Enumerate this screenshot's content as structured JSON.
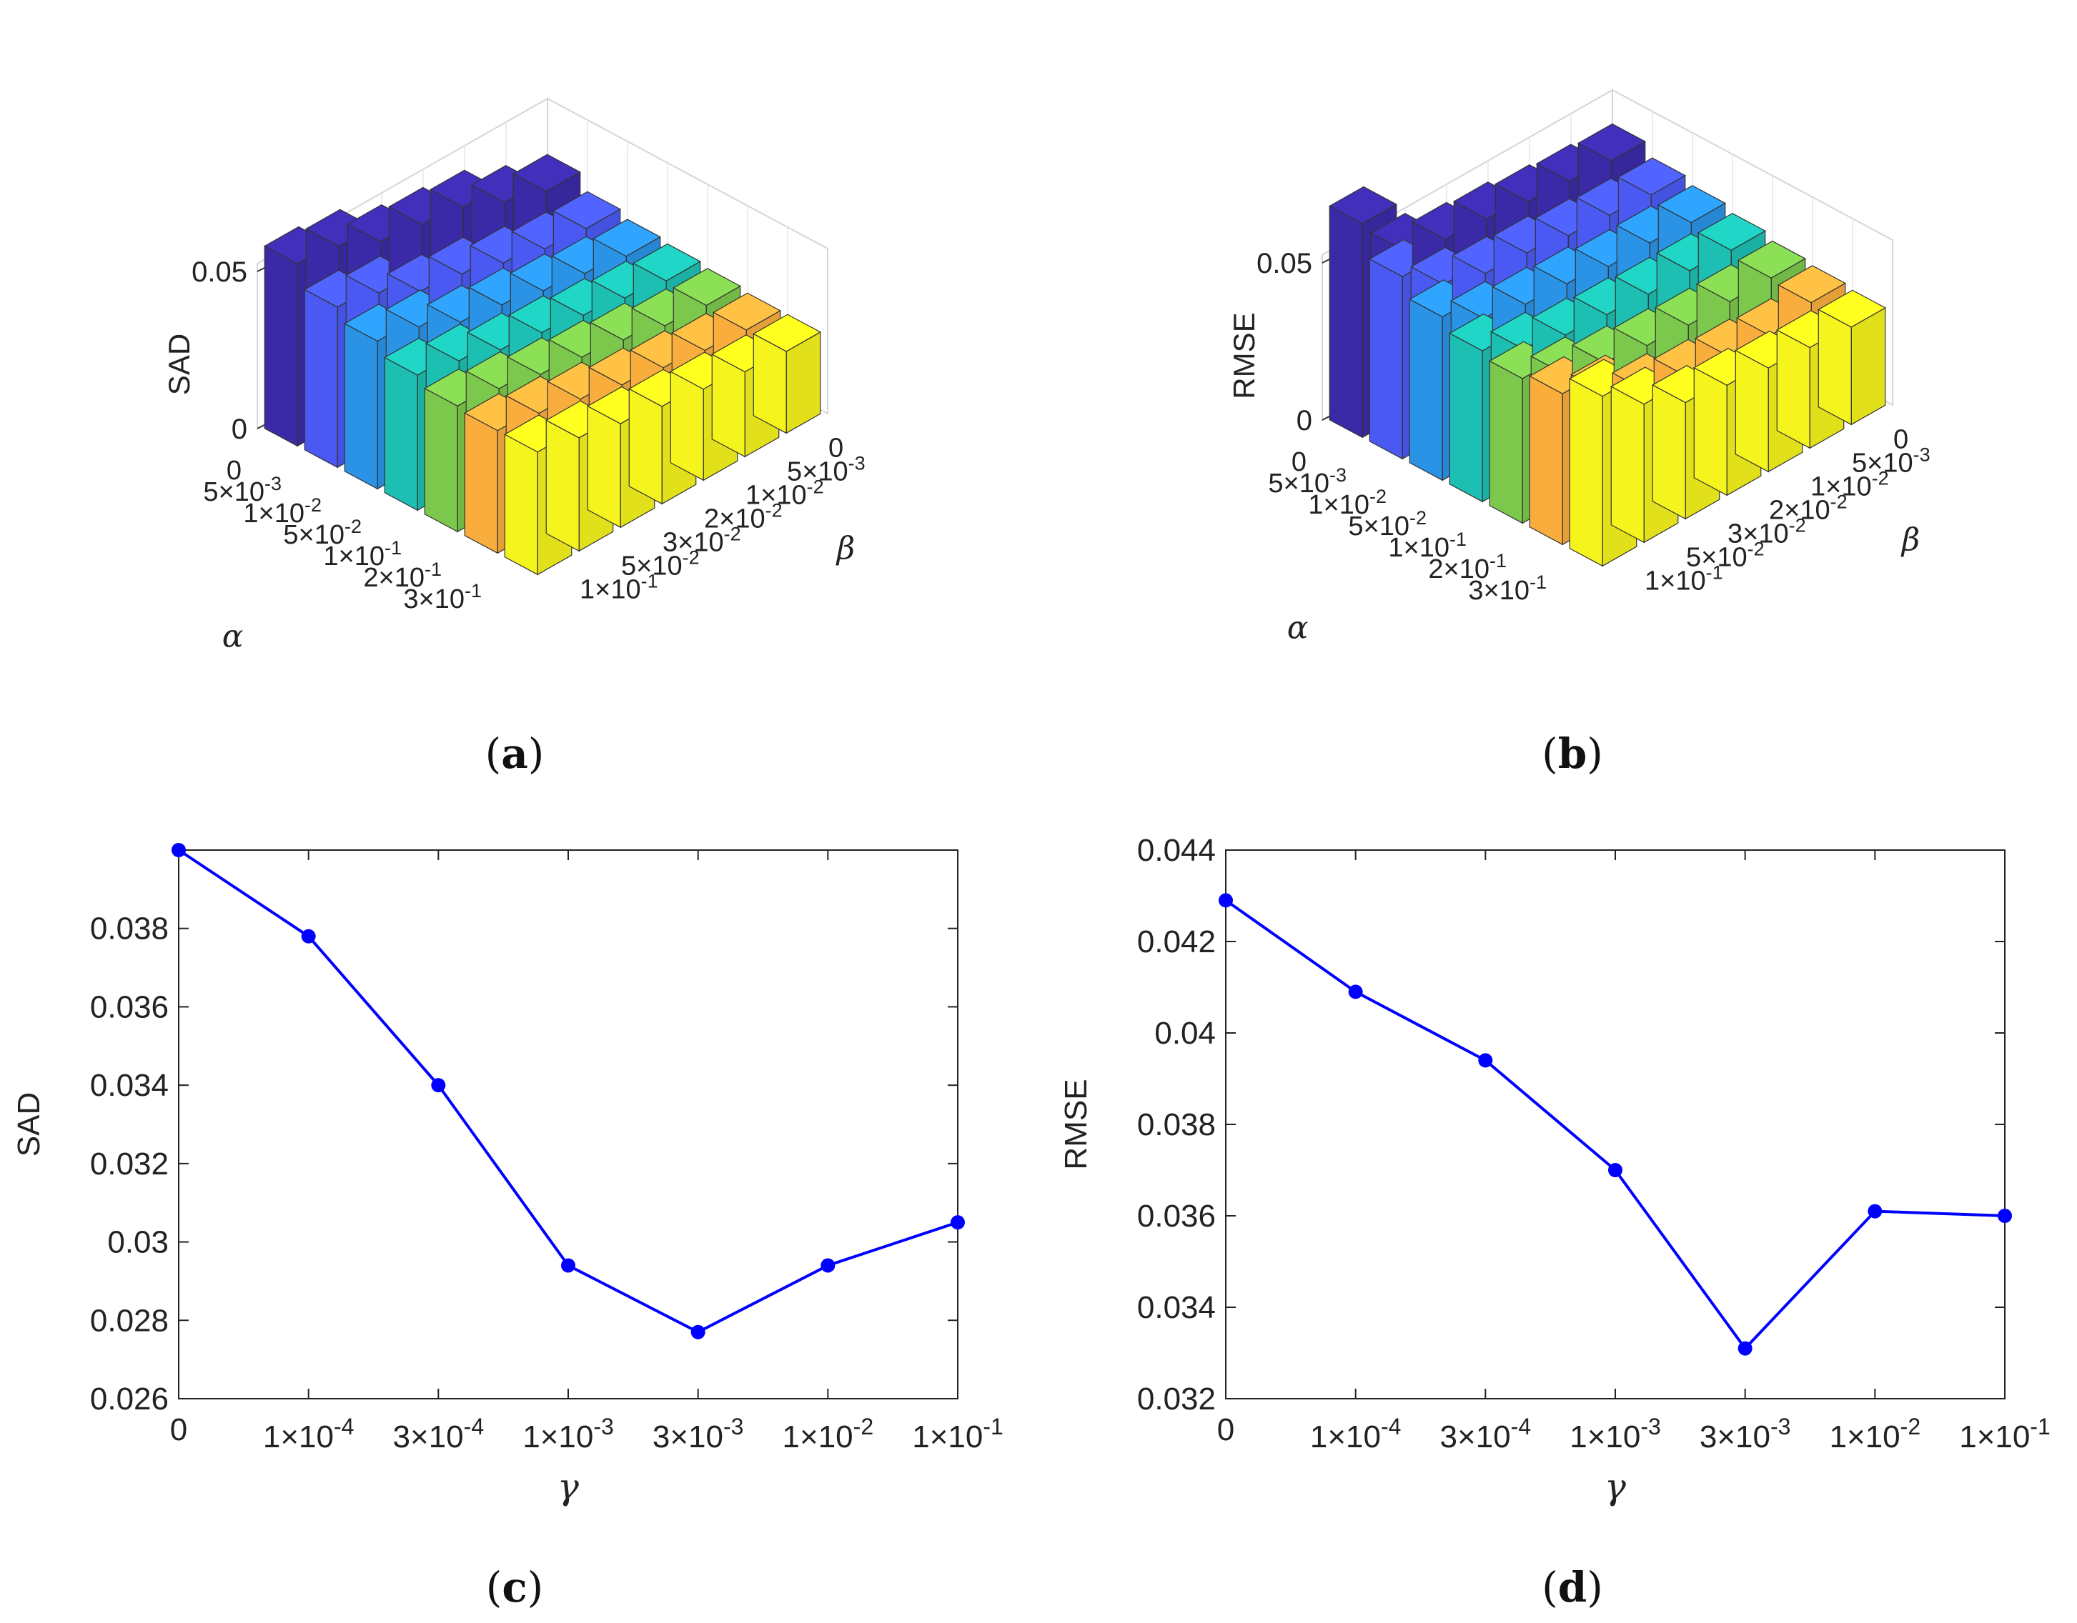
{
  "panels": {
    "a": {
      "label": "a"
    },
    "b": {
      "label": "b"
    },
    "c": {
      "label": "c"
    },
    "d": {
      "label": "d"
    }
  },
  "chart_data": [
    {
      "panel": "a",
      "type": "bar3d",
      "zlabel": "SAD",
      "xlabel": "α",
      "ylabel": "β",
      "ztick_labels": [
        "0",
        "0.05"
      ],
      "zlim": [
        0,
        0.05
      ],
      "alpha_ticks": [
        "0",
        "5×10-3",
        "1×10-2",
        "5×10-2",
        "1×10-1",
        "2×10-1",
        "3×10-1"
      ],
      "beta_ticks": [
        "0",
        "5×10-3",
        "1×10-2",
        "2×10-2",
        "3×10-2",
        "5×10-2",
        "1×10-1"
      ],
      "row_colors": [
        "#3b2aa8",
        "#4959f2",
        "#2b93e6",
        "#1cbfb2",
        "#7cc84c",
        "#f9ad3d",
        "#f6f41d"
      ],
      "values": [
        [
          0.036,
          0.04,
          0.046,
          0.048,
          0.05,
          0.056,
          0.058
        ],
        [
          0.031,
          0.032,
          0.035,
          0.039,
          0.041,
          0.048,
          0.051
        ],
        [
          0.029,
          0.031,
          0.033,
          0.036,
          0.038,
          0.044,
          0.047
        ],
        [
          0.028,
          0.03,
          0.032,
          0.034,
          0.036,
          0.04,
          0.043
        ],
        [
          0.027,
          0.028,
          0.031,
          0.033,
          0.035,
          0.038,
          0.04
        ],
        [
          0.026,
          0.027,
          0.029,
          0.031,
          0.034,
          0.037,
          0.039
        ],
        [
          0.026,
          0.027,
          0.029,
          0.031,
          0.033,
          0.036,
          0.039
        ]
      ]
    },
    {
      "panel": "b",
      "type": "bar3d",
      "zlabel": "RMSE",
      "xlabel": "α",
      "ylabel": "β",
      "ztick_labels": [
        "0",
        "0.05"
      ],
      "zlim": [
        0,
        0.05
      ],
      "alpha_ticks": [
        "0",
        "5×10-3",
        "1×10-2",
        "5×10-2",
        "1×10-1",
        "2×10-1",
        "3×10-1"
      ],
      "beta_ticks": [
        "0",
        "5×10-3",
        "1×10-2",
        "2×10-2",
        "3×10-2",
        "5×10-2",
        "1×10-1"
      ],
      "row_colors": [
        "#3b2aa8",
        "#4959f2",
        "#2b93e6",
        "#1cbfb2",
        "#7cc84c",
        "#f9ad3d",
        "#f6f41d"
      ],
      "values": [
        [
          0.043,
          0.044,
          0.045,
          0.047,
          0.048,
          0.052,
          0.068
        ],
        [
          0.039,
          0.04,
          0.041,
          0.043,
          0.044,
          0.048,
          0.058
        ],
        [
          0.037,
          0.038,
          0.038,
          0.04,
          0.041,
          0.044,
          0.052
        ],
        [
          0.035,
          0.036,
          0.036,
          0.037,
          0.038,
          0.041,
          0.048
        ],
        [
          0.033,
          0.033,
          0.033,
          0.034,
          0.036,
          0.04,
          0.046
        ],
        [
          0.032,
          0.029,
          0.03,
          0.031,
          0.034,
          0.041,
          0.048
        ],
        [
          0.031,
          0.032,
          0.033,
          0.035,
          0.037,
          0.044,
          0.054
        ]
      ]
    },
    {
      "panel": "c",
      "type": "line",
      "xlabel": "γ",
      "ylabel": "SAD",
      "categories": [
        "0",
        "1×10-4",
        "3×10-4",
        "1×10-3",
        "3×10-3",
        "1×10-2",
        "1×10-1"
      ],
      "series": [
        {
          "values": [
            0.04,
            0.0378,
            0.034,
            0.0294,
            0.0277,
            0.0294,
            0.0305
          ],
          "color": "#0000ff"
        }
      ],
      "ylim": [
        0.026,
        0.04
      ],
      "yticks": [
        "0.026",
        "0.028",
        "0.03",
        "0.032",
        "0.034",
        "0.036",
        "0.038"
      ]
    },
    {
      "panel": "d",
      "type": "line",
      "xlabel": "γ",
      "ylabel": "RMSE",
      "categories": [
        "0",
        "1×10-4",
        "3×10-4",
        "1×10-3",
        "3×10-3",
        "1×10-2",
        "1×10-1"
      ],
      "series": [
        {
          "values": [
            0.0429,
            0.0409,
            0.0394,
            0.037,
            0.0331,
            0.0361,
            0.036
          ],
          "color": "#0000ff"
        }
      ],
      "ylim": [
        0.032,
        0.044
      ],
      "yticks": [
        "0.032",
        "0.034",
        "0.036",
        "0.038",
        "0.04",
        "0.042",
        "0.044"
      ]
    }
  ]
}
